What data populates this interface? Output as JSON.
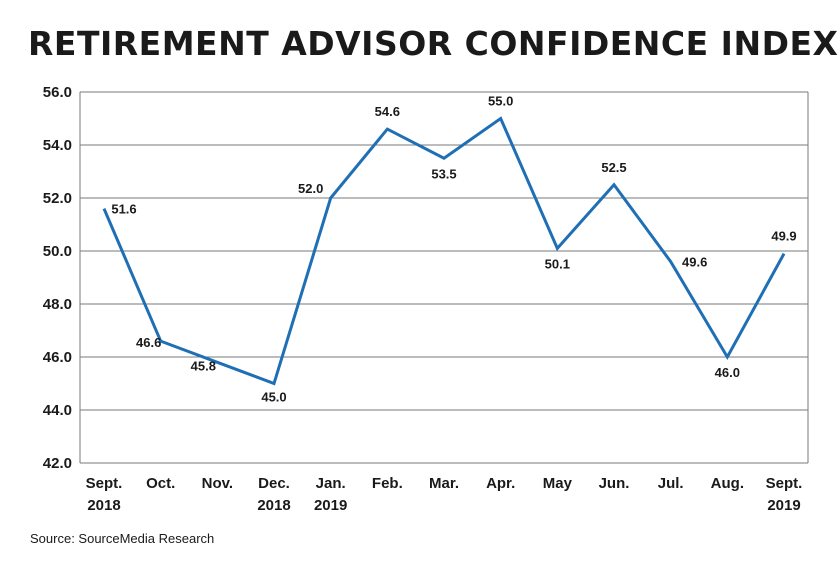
{
  "chart_data": {
    "type": "line",
    "title": "RETIREMENT ADVISOR CONFIDENCE INDEX",
    "source": "Source: SourceMedia Research",
    "categories": [
      [
        "Sept.",
        "2018"
      ],
      [
        "Oct."
      ],
      [
        "Nov."
      ],
      [
        "Dec.",
        "2018"
      ],
      [
        "Jan.",
        "2019"
      ],
      [
        "Feb."
      ],
      [
        "Mar."
      ],
      [
        "Apr."
      ],
      [
        "May"
      ],
      [
        "Jun."
      ],
      [
        "Jul."
      ],
      [
        "Aug."
      ],
      [
        "Sept.",
        "2019"
      ]
    ],
    "series": [
      {
        "name": "Retirement Advisor Confidence Index",
        "values": [
          51.6,
          46.6,
          45.8,
          45.0,
          52.0,
          54.6,
          53.5,
          55.0,
          50.1,
          52.5,
          49.6,
          46.0,
          49.9
        ],
        "labels": [
          "51.6",
          "46.6",
          "45.8",
          "45.0",
          "52.0",
          "54.6",
          "53.5",
          "55.0",
          "50.1",
          "52.5",
          "49.6",
          "46.0",
          "49.9"
        ],
        "color": "#1f6fb5"
      }
    ],
    "yticks": [
      "56.0",
      "54.0",
      "52.0",
      "50.0",
      "48.0",
      "46.0",
      "44.0",
      "42.0"
    ],
    "ylim": [
      42,
      56
    ],
    "grid": true,
    "xlabel": "",
    "ylabel": ""
  }
}
